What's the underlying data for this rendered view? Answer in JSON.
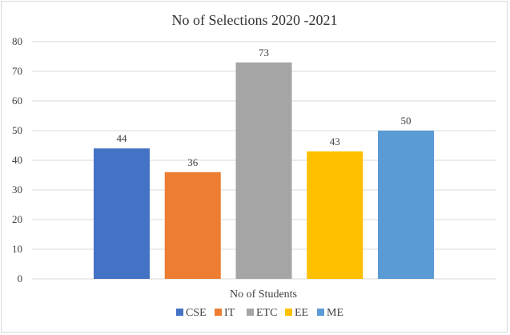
{
  "chart_data": {
    "type": "bar",
    "title": "No of Selections 2020 -2021",
    "xlabel": "No of Students",
    "ylabel": "",
    "categories": [
      "No of Students"
    ],
    "series": [
      {
        "name": "CSE",
        "values": [
          44
        ],
        "color": "#4472C4"
      },
      {
        "name": "IT",
        "values": [
          36
        ],
        "color": "#ED7D31"
      },
      {
        "name": "ETC",
        "values": [
          73
        ],
        "color": "#A5A5A5"
      },
      {
        "name": "EE",
        "values": [
          43
        ],
        "color": "#FFC000"
      },
      {
        "name": "ME",
        "values": [
          50
        ],
        "color": "#5B9BD5"
      }
    ],
    "ylim": [
      0,
      80
    ],
    "yticks": [
      0,
      10,
      20,
      30,
      40,
      50,
      60,
      70,
      80
    ],
    "grid": true,
    "data_labels": true,
    "legend_position": "bottom"
  }
}
